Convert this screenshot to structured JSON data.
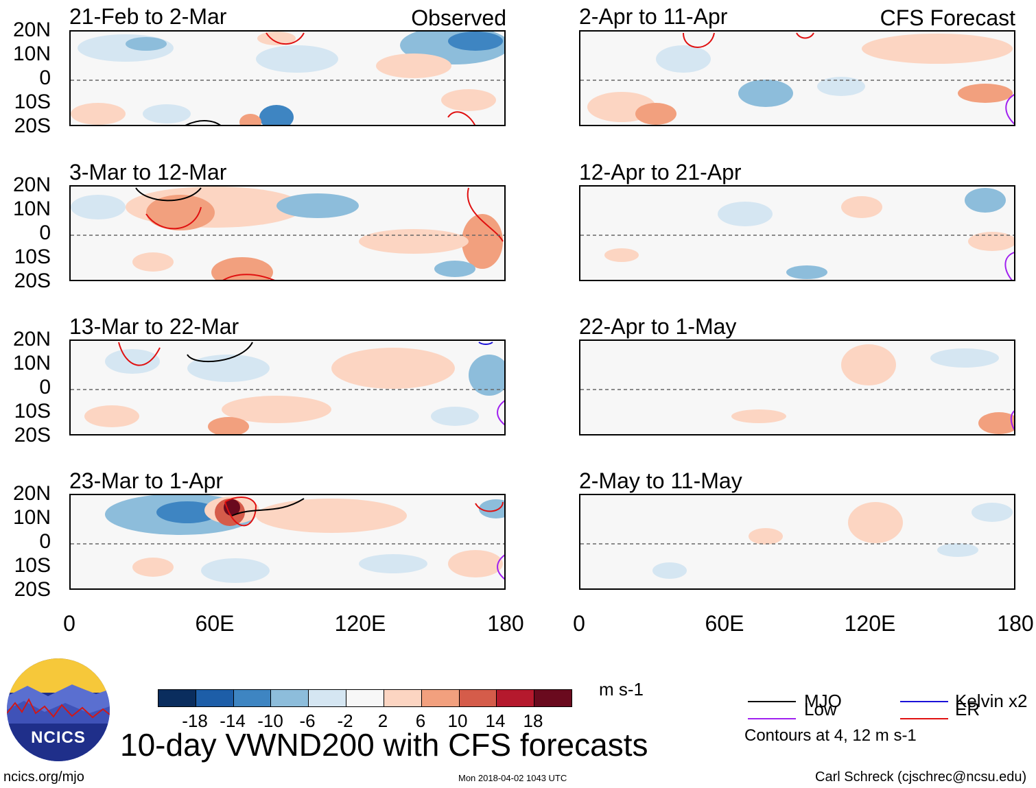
{
  "left_column": {
    "tag": "Observed",
    "panels": [
      {
        "title": "21-Feb to 2-Mar"
      },
      {
        "title": "3-Mar to 12-Mar"
      },
      {
        "title": "13-Mar to 22-Mar"
      },
      {
        "title": "23-Mar to 1-Apr"
      }
    ]
  },
  "right_column": {
    "tag": "CFS Forecast",
    "panels": [
      {
        "title": "2-Apr to 11-Apr"
      },
      {
        "title": "12-Apr to 21-Apr"
      },
      {
        "title": "22-Apr to 1-May"
      },
      {
        "title": "2-May to 11-May"
      }
    ]
  },
  "lat_labels": [
    "20N",
    "10N",
    "0",
    "10S",
    "20S"
  ],
  "lon_labels": [
    "0",
    "60E",
    "120E",
    "180"
  ],
  "colorbar": {
    "labels": [
      "-18",
      "-14",
      "-10",
      "-6",
      "-2",
      "2",
      "6",
      "10",
      "14",
      "18"
    ],
    "units": "m s-1",
    "colors": [
      "#0a2d5e",
      "#1d5ea8",
      "#3e85c2",
      "#8dbddb",
      "#d5e6f2",
      "#f7f7f7",
      "#fcd5c2",
      "#f2a07e",
      "#d55c4a",
      "#b5192d",
      "#6a0a1e"
    ]
  },
  "legend": {
    "items": [
      {
        "label": "MJO",
        "color": "#000000"
      },
      {
        "label": "Kelvin x2",
        "color": "#1a10d8"
      },
      {
        "label": "Low",
        "color": "#a020f0"
      },
      {
        "label": "ER",
        "color": "#e01010"
      }
    ],
    "note": "Contours at 4, 12 m s-1"
  },
  "logo": {
    "text": "NCICS"
  },
  "title": "10-day VWND200 with CFS forecasts",
  "footer": {
    "url": "ncics.org/mjo",
    "timestamp": "Mon 2018-04-02 1043 UTC",
    "author": "Carl Schreck (cjschrec@ncsu.edu)"
  }
}
